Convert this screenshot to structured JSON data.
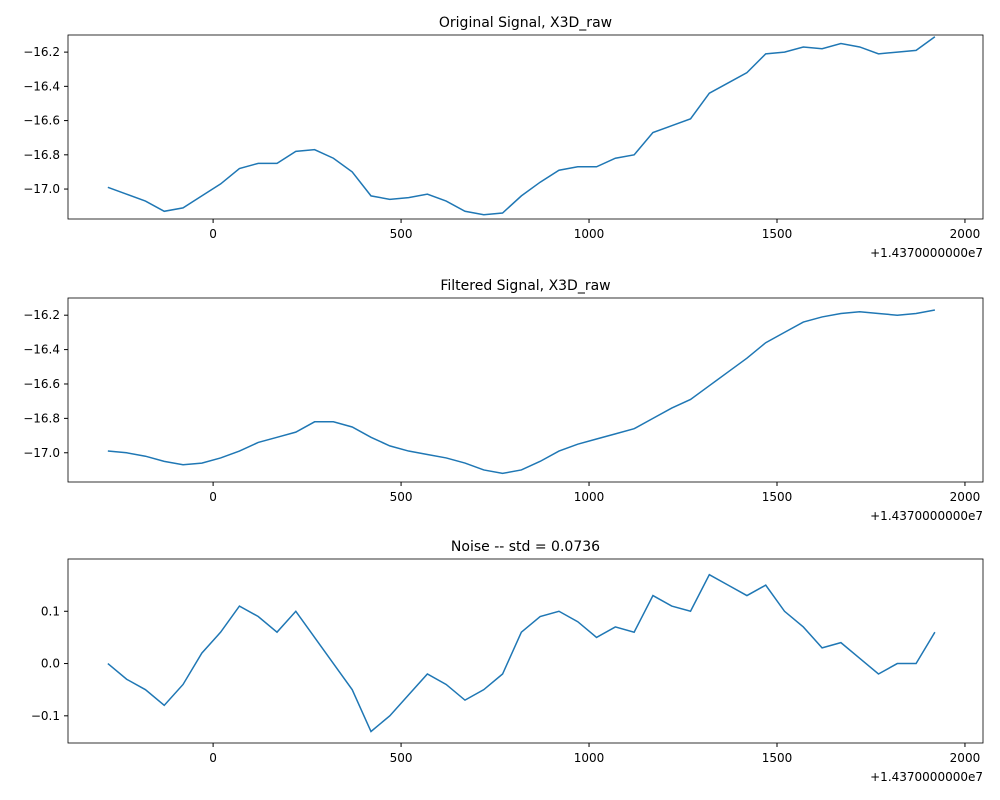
{
  "chart_data": [
    {
      "type": "line",
      "title": "Original Signal, X3D_raw",
      "x_offset_label": "+1.4370000000e7",
      "x": [
        -280,
        -230,
        -180,
        -130,
        -80,
        -30,
        20,
        70,
        120,
        170,
        220,
        270,
        320,
        370,
        420,
        470,
        520,
        570,
        620,
        670,
        720,
        770,
        820,
        870,
        920,
        970,
        1020,
        1070,
        1120,
        1170,
        1220,
        1270,
        1320,
        1370,
        1420,
        1470,
        1520,
        1570,
        1620,
        1670,
        1720,
        1770,
        1820,
        1870,
        1920
      ],
      "series": [
        {
          "color": "#1f77b4",
          "values": [
            -16.99,
            -17.03,
            -17.07,
            -17.13,
            -17.11,
            -17.04,
            -16.97,
            -16.88,
            -16.85,
            -16.85,
            -16.78,
            -16.77,
            -16.82,
            -16.9,
            -17.04,
            -17.06,
            -17.05,
            -17.03,
            -17.07,
            -17.13,
            -17.15,
            -17.14,
            -17.04,
            -16.96,
            -16.89,
            -16.87,
            -16.87,
            -16.82,
            -16.8,
            -16.67,
            -16.63,
            -16.59,
            -16.44,
            -16.38,
            -16.32,
            -16.21,
            -16.2,
            -16.17,
            -16.18,
            -16.15,
            -16.17,
            -16.21,
            -16.2,
            -16.19,
            -16.11
          ]
        }
      ],
      "xlim": [
        -386,
        2048
      ],
      "xticks": [
        0,
        500,
        1000,
        1500,
        2000
      ],
      "ylim": [
        -17.175,
        -16.1
      ],
      "yticks": [
        {
          "value": -17,
          "label": "−17.0"
        },
        {
          "value": -16.8,
          "label": "−16.8"
        },
        {
          "value": -16.6,
          "label": "−16.6"
        },
        {
          "value": -16.4,
          "label": "−16.4"
        },
        {
          "value": -16.2,
          "label": "−16.2"
        }
      ]
    },
    {
      "type": "line",
      "title": "Filtered Signal, X3D_raw",
      "x_offset_label": "+1.4370000000e7",
      "x": [
        -280,
        -230,
        -180,
        -130,
        -80,
        -30,
        20,
        70,
        120,
        170,
        220,
        270,
        320,
        370,
        420,
        470,
        520,
        570,
        620,
        670,
        720,
        770,
        820,
        870,
        920,
        970,
        1020,
        1070,
        1120,
        1170,
        1220,
        1270,
        1320,
        1370,
        1420,
        1470,
        1520,
        1570,
        1620,
        1670,
        1720,
        1770,
        1820,
        1870,
        1920
      ],
      "series": [
        {
          "color": "#1f77b4",
          "values": [
            -16.99,
            -17.0,
            -17.02,
            -17.05,
            -17.07,
            -17.06,
            -17.03,
            -16.99,
            -16.94,
            -16.91,
            -16.88,
            -16.82,
            -16.82,
            -16.85,
            -16.91,
            -16.96,
            -16.99,
            -17.01,
            -17.03,
            -17.06,
            -17.1,
            -17.12,
            -17.1,
            -17.05,
            -16.99,
            -16.95,
            -16.92,
            -16.89,
            -16.86,
            -16.8,
            -16.74,
            -16.69,
            -16.61,
            -16.53,
            -16.45,
            -16.36,
            -16.3,
            -16.24,
            -16.21,
            -16.19,
            -16.18,
            -16.19,
            -16.2,
            -16.19,
            -16.17
          ]
        }
      ],
      "xlim": [
        -386,
        2048
      ],
      "xticks": [
        0,
        500,
        1000,
        1500,
        2000
      ],
      "ylim": [
        -17.17,
        -16.1
      ],
      "yticks": [
        {
          "value": -17,
          "label": "−17.0"
        },
        {
          "value": -16.8,
          "label": "−16.8"
        },
        {
          "value": -16.6,
          "label": "−16.6"
        },
        {
          "value": -16.4,
          "label": "−16.4"
        },
        {
          "value": -16.2,
          "label": "−16.2"
        }
      ]
    },
    {
      "type": "line",
      "title": "Noise -- std = 0.0736",
      "x_offset_label": "+1.4370000000e7",
      "x": [
        -280,
        -230,
        -180,
        -130,
        -80,
        -30,
        20,
        70,
        120,
        170,
        220,
        270,
        320,
        370,
        420,
        470,
        520,
        570,
        620,
        670,
        720,
        770,
        820,
        870,
        920,
        970,
        1020,
        1070,
        1120,
        1170,
        1220,
        1270,
        1320,
        1370,
        1420,
        1470,
        1520,
        1570,
        1620,
        1670,
        1720,
        1770,
        1820,
        1870,
        1920
      ],
      "series": [
        {
          "color": "#1f77b4",
          "values": [
            0.0,
            -0.03,
            -0.05,
            -0.08,
            -0.04,
            0.02,
            0.06,
            0.11,
            0.09,
            0.06,
            0.1,
            0.05,
            0.0,
            -0.05,
            -0.13,
            -0.1,
            -0.06,
            -0.02,
            -0.04,
            -0.07,
            -0.05,
            -0.02,
            0.06,
            0.09,
            0.1,
            0.08,
            0.05,
            0.07,
            0.06,
            0.13,
            0.11,
            0.1,
            0.17,
            0.15,
            0.13,
            0.15,
            0.1,
            0.07,
            0.03,
            0.04,
            0.01,
            -0.02,
            0.0,
            0.0,
            0.06
          ]
        }
      ],
      "xlim": [
        -386,
        2048
      ],
      "xticks": [
        0,
        500,
        1000,
        1500,
        2000
      ],
      "ylim": [
        -0.152,
        0.2
      ],
      "yticks": [
        {
          "value": -0.1,
          "label": "−0.1"
        },
        {
          "value": 0,
          "label": "0.0"
        },
        0.1
      ]
    }
  ]
}
